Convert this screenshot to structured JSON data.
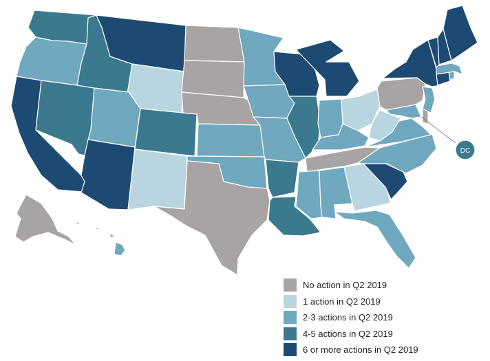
{
  "colors": {
    "no_action": "#a8a4a3",
    "one": "#b9d6e0",
    "two_three": "#6fa8bf",
    "four_five": "#3b7a8e",
    "six_plus": "#1d4a72"
  },
  "legend": [
    {
      "label": "No action in Q2 2019",
      "category": "no_action"
    },
    {
      "label": "1 action in Q2 2019",
      "category": "one"
    },
    {
      "label": "2-3 actions in Q2 2019",
      "category": "two_three"
    },
    {
      "label": "4-5 actions in Q2 2019",
      "category": "four_five"
    },
    {
      "label": "6 or more actions in Q2 2019",
      "category": "six_plus"
    }
  ],
  "dc_callout": {
    "label": "DC",
    "category": "four_five"
  },
  "states": [
    {
      "id": "WA",
      "category": "four_five"
    },
    {
      "id": "OR",
      "category": "two_three"
    },
    {
      "id": "CA",
      "category": "six_plus"
    },
    {
      "id": "NV",
      "category": "four_five"
    },
    {
      "id": "ID",
      "category": "four_five"
    },
    {
      "id": "MT",
      "category": "six_plus"
    },
    {
      "id": "WY",
      "category": "one"
    },
    {
      "id": "UT",
      "category": "two_three"
    },
    {
      "id": "AZ",
      "category": "six_plus"
    },
    {
      "id": "CO",
      "category": "four_five"
    },
    {
      "id": "NM",
      "category": "one"
    },
    {
      "id": "ND",
      "category": "no_action"
    },
    {
      "id": "SD",
      "category": "no_action"
    },
    {
      "id": "NE",
      "category": "no_action"
    },
    {
      "id": "KS",
      "category": "two_three"
    },
    {
      "id": "OK",
      "category": "two_three"
    },
    {
      "id": "TX",
      "category": "no_action"
    },
    {
      "id": "MN",
      "category": "two_three"
    },
    {
      "id": "IA",
      "category": "two_three"
    },
    {
      "id": "MO",
      "category": "two_three"
    },
    {
      "id": "AR",
      "category": "four_five"
    },
    {
      "id": "LA",
      "category": "four_five"
    },
    {
      "id": "WI",
      "category": "six_plus"
    },
    {
      "id": "IL",
      "category": "four_five"
    },
    {
      "id": "MI",
      "category": "six_plus"
    },
    {
      "id": "IN",
      "category": "two_three"
    },
    {
      "id": "OH",
      "category": "one"
    },
    {
      "id": "KY",
      "category": "two_three"
    },
    {
      "id": "TN",
      "category": "no_action"
    },
    {
      "id": "MS",
      "category": "two_three"
    },
    {
      "id": "AL",
      "category": "two_three"
    },
    {
      "id": "GA",
      "category": "one"
    },
    {
      "id": "FL",
      "category": "two_three"
    },
    {
      "id": "SC",
      "category": "six_plus"
    },
    {
      "id": "NC",
      "category": "two_three"
    },
    {
      "id": "VA",
      "category": "two_three"
    },
    {
      "id": "WV",
      "category": "one"
    },
    {
      "id": "MD",
      "category": "two_three"
    },
    {
      "id": "DE",
      "category": "no_action"
    },
    {
      "id": "PA",
      "category": "no_action"
    },
    {
      "id": "NJ",
      "category": "two_three"
    },
    {
      "id": "NY",
      "category": "six_plus"
    },
    {
      "id": "CT",
      "category": "six_plus"
    },
    {
      "id": "RI",
      "category": "two_three"
    },
    {
      "id": "MA",
      "category": "two_three"
    },
    {
      "id": "VT",
      "category": "six_plus"
    },
    {
      "id": "NH",
      "category": "six_plus"
    },
    {
      "id": "ME",
      "category": "six_plus"
    },
    {
      "id": "AK",
      "category": "no_action"
    },
    {
      "id": "HI",
      "category": "two_three"
    }
  ]
}
